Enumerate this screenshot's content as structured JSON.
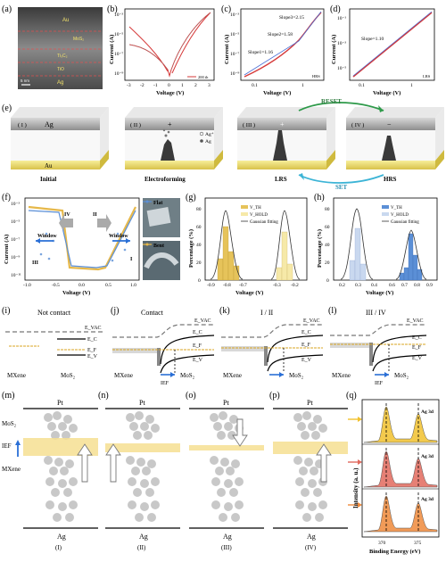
{
  "panel_labels": {
    "a": "(a)",
    "b": "(b)",
    "c": "(c)",
    "d": "(d)",
    "e": "(e)",
    "f": "(f)",
    "g": "(g)",
    "h": "(h)",
    "i": "(i)",
    "j": "(j)",
    "k": "(k)",
    "l": "(l)",
    "m": "(m)",
    "n": "(n)",
    "o": "(o)",
    "p": "(p)",
    "q": "(q)"
  },
  "a": {
    "layers": [
      "Au",
      "MoS₂",
      "Ti₃C₂",
      "TiO",
      "Ag"
    ],
    "scale": "5 nm"
  },
  "b": {
    "xlabel": "Voltage (V)",
    "ylabel": "Current (A)",
    "xticks": [
      "-3",
      "-2",
      "-1",
      "0",
      "1",
      "2",
      "3"
    ],
    "yticks": [
      "10⁻³",
      "10⁻⁵",
      "10⁻⁷",
      "10⁻⁹"
    ],
    "legend": "200 th"
  },
  "c": {
    "xlabel": "Voltage (V)",
    "ylabel": "Current (A)",
    "xticks": [
      "0.1",
      "1"
    ],
    "yticks": [
      "10⁻³",
      "10⁻⁵",
      "10⁻⁷",
      "10⁻⁹"
    ],
    "slopes": [
      "Slope3=2.15",
      "Slope2=1.58",
      "Slope1=1.16"
    ],
    "state": "HRS"
  },
  "d": {
    "xlabel": "Voltage (V)",
    "ylabel": "Current (A)",
    "xticks": [
      "0.1",
      "1"
    ],
    "yticks": [
      "10⁻¹",
      "10⁻³",
      "10⁻⁵"
    ],
    "slope": "Slope=1.10",
    "state": "LRS"
  },
  "e": {
    "stages": [
      {
        "numeral": "( I )",
        "caption": "Initial"
      },
      {
        "numeral": "( II )",
        "caption": "Electroforming",
        "sign": "+"
      },
      {
        "numeral": "( III )",
        "caption": "LRS",
        "sign": "+"
      },
      {
        "numeral": "( IV )",
        "caption": "HRS",
        "sign": "−"
      }
    ],
    "top_electrode": "Ag",
    "bottom_electrode": "Au",
    "legend": [
      "Ag⁺",
      "Ag"
    ],
    "reset": "RESET",
    "set": "SET"
  },
  "f": {
    "xlabel": "Voltage (V)",
    "ylabel": "Current (A)",
    "xticks": [
      "-1.0",
      "-0.5",
      "0.0",
      "0.5",
      "1.0"
    ],
    "yticks": [
      "10⁻³",
      "10⁻⁵",
      "10⁻⁷",
      "10⁻⁹",
      "10⁻¹¹"
    ],
    "region_labels": [
      "I",
      "II",
      "III",
      "IV"
    ],
    "window": "Window",
    "legend": [
      "Flat",
      "Bent"
    ],
    "colors": {
      "flat": "#5b8fd6",
      "bent": "#e6b84a"
    }
  },
  "g": {
    "xlabel": "Voltage (V)",
    "ylabel": "Percentage (%)",
    "xticks": [
      "-0.9",
      "-0.8",
      "-0.7",
      "-0.3",
      "-0.2"
    ],
    "yticks": [
      "0",
      "20",
      "40",
      "60",
      "80"
    ],
    "legend": [
      "V_TH",
      "V_HOLD",
      "Gaussian fitting"
    ]
  },
  "h": {
    "xlabel": "Voltage (V)",
    "ylabel": "Percentage (%)",
    "xticks": [
      "0.2",
      "0.3",
      "0.4",
      "0.6",
      "0.7",
      "0.8",
      "0.9"
    ],
    "yticks": [
      "0",
      "20",
      "40",
      "60",
      "80"
    ],
    "legend": [
      "V_TH",
      "V_HOLD",
      "Gaussian fitting"
    ]
  },
  "bands": {
    "i": {
      "title": "Not contact",
      "left": "MXene",
      "right": "MoS₂"
    },
    "j": {
      "title": "Contact",
      "left": "MXene",
      "right": "MoS₂"
    },
    "k": {
      "title": "I / II",
      "left": "MXene",
      "right": "MoS₂"
    },
    "l": {
      "title": "III / IV",
      "left": "MXene",
      "right": "MoS₂"
    },
    "levels": {
      "vac": "E_VAC",
      "c": "E_C",
      "f": "E_F",
      "v": "E_V"
    },
    "ief": "IEF"
  },
  "m_labels": {
    "pt": "Pt",
    "mos2": "MoS₂",
    "ief": "IEF",
    "mxene": "MXene",
    "ag": "Ag"
  },
  "stage_captions": [
    "(I)",
    "(II)",
    "(III)",
    "(IV)"
  ],
  "q": {
    "xlabel": "Binding Energy (eV)",
    "ylabel": "Intensity (a. u.)",
    "xticks": [
      "370",
      "375"
    ],
    "peak_label": "Ag 3d",
    "colors": [
      "#f2c12e",
      "#e26a5e",
      "#ef8a3c"
    ]
  }
}
